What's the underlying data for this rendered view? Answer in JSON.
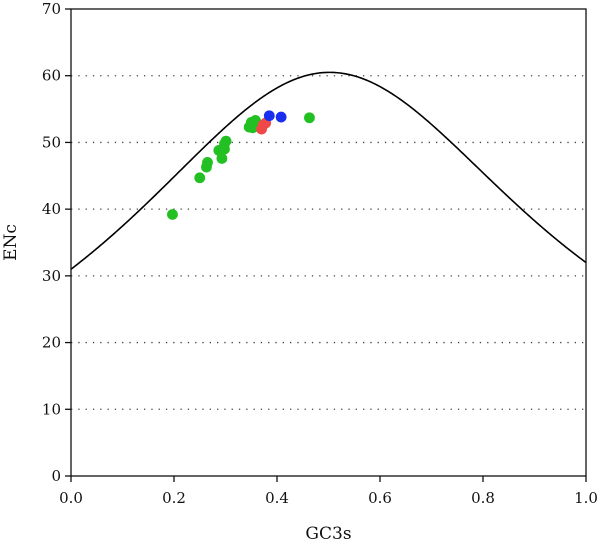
{
  "chart_data": {
    "type": "scatter",
    "title": "",
    "xlabel": "GC3s",
    "ylabel": "ENc",
    "xlim": [
      0.0,
      1.0
    ],
    "ylim": [
      0,
      70
    ],
    "xticks": [
      "0.0",
      "0.2",
      "0.4",
      "0.6",
      "0.8",
      "1.0"
    ],
    "yticks": [
      "0",
      "10",
      "20",
      "30",
      "40",
      "50",
      "60",
      "70"
    ],
    "grid": "horizontal dotted lines at 10, 20, 30, 40, 50, 60",
    "expected_curve": {
      "formula": "ENc = 2 + s + 29 / (s^2 + (1 - s)^2)",
      "color": "#000000"
    },
    "series": [
      {
        "color": "#22c022",
        "points": [
          {
            "x": 0.197,
            "y": 39.2
          },
          {
            "x": 0.25,
            "y": 44.7
          },
          {
            "x": 0.263,
            "y": 46.3
          },
          {
            "x": 0.265,
            "y": 47.0
          },
          {
            "x": 0.287,
            "y": 48.8
          },
          {
            "x": 0.293,
            "y": 47.6
          },
          {
            "x": 0.298,
            "y": 49.0
          },
          {
            "x": 0.298,
            "y": 49.8
          },
          {
            "x": 0.301,
            "y": 50.2
          },
          {
            "x": 0.346,
            "y": 52.3
          },
          {
            "x": 0.35,
            "y": 53.0
          },
          {
            "x": 0.353,
            "y": 52.2
          },
          {
            "x": 0.358,
            "y": 53.3
          },
          {
            "x": 0.362,
            "y": 52.8
          },
          {
            "x": 0.463,
            "y": 53.7
          }
        ]
      },
      {
        "color": "#f04848",
        "points": [
          {
            "x": 0.37,
            "y": 52.0
          },
          {
            "x": 0.373,
            "y": 52.6
          },
          {
            "x": 0.378,
            "y": 52.9
          }
        ]
      },
      {
        "color": "#1a2ef0",
        "points": [
          {
            "x": 0.385,
            "y": 54.0
          },
          {
            "x": 0.408,
            "y": 53.8
          }
        ]
      }
    ]
  }
}
